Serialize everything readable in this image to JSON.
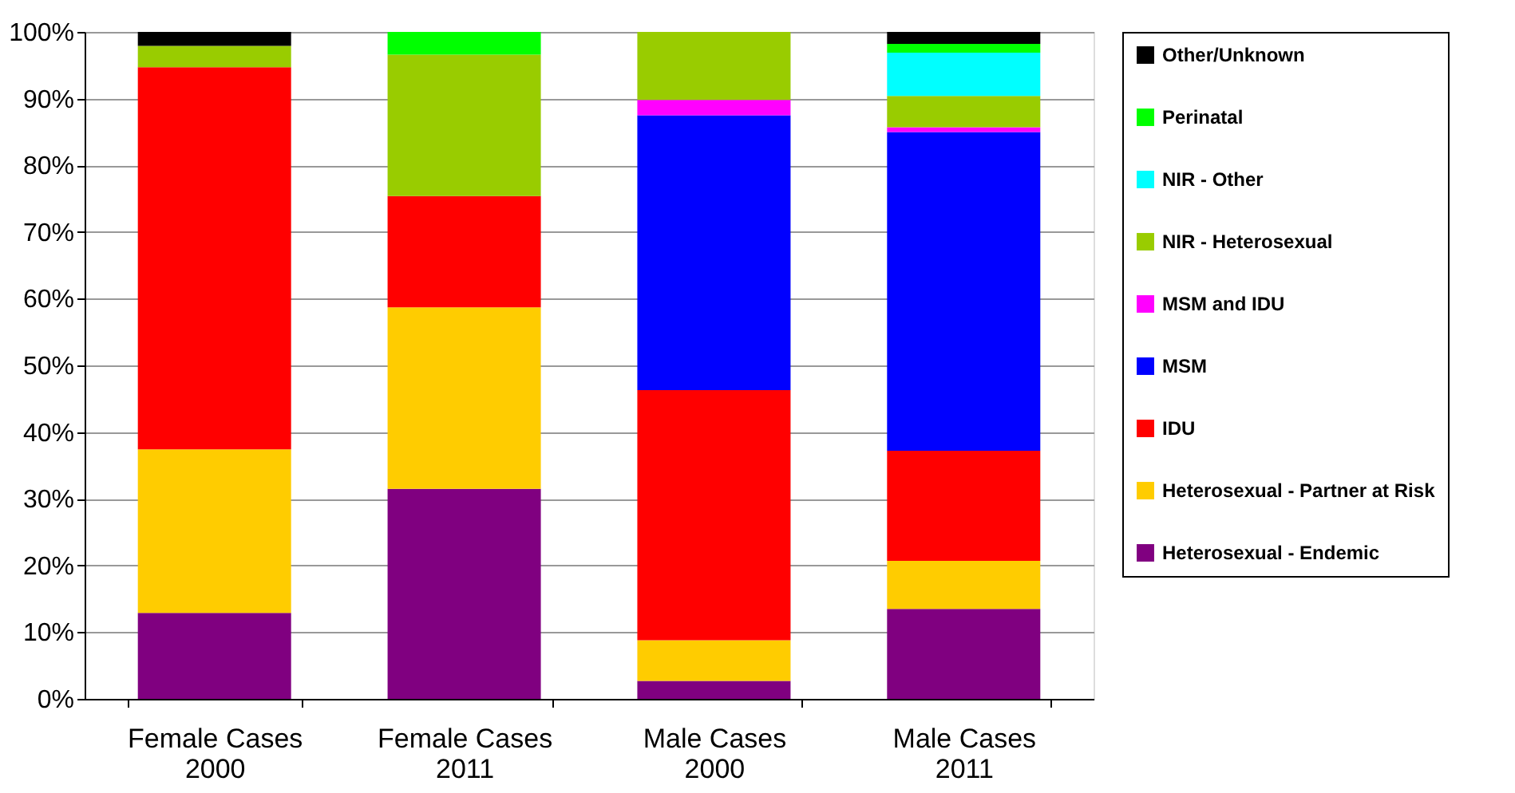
{
  "chart_data": {
    "type": "bar",
    "stacked": true,
    "grid": "y",
    "legend": "right",
    "categories": [
      "Female Cases 2000",
      "Female Cases 2011",
      "Male Cases 2000",
      "Male Cases 2011"
    ],
    "series": [
      {
        "name": "Heterosexual - Endemic",
        "color": "#800080",
        "values": [
          12.9,
          31.5,
          2.7,
          13.5
        ]
      },
      {
        "name": "Heterosexual - Partner at Risk",
        "color": "#ffcc00",
        "values": [
          24.5,
          27.2,
          6.1,
          7.2
        ]
      },
      {
        "name": "IDU",
        "color": "#ff0000",
        "values": [
          57.3,
          16.7,
          37.5,
          16.5
        ]
      },
      {
        "name": "MSM",
        "color": "#0000ff",
        "values": [
          0,
          0,
          41.2,
          47.8
        ]
      },
      {
        "name": "MSM and IDU",
        "color": "#ff00ff",
        "values": [
          0,
          0,
          2.3,
          0.7
        ]
      },
      {
        "name": "NIR - Heterosexual",
        "color": "#99cc00",
        "values": [
          3.2,
          21.2,
          10.2,
          4.7
        ]
      },
      {
        "name": "NIR - Other",
        "color": "#00ffff",
        "values": [
          0,
          0,
          0,
          6.5
        ]
      },
      {
        "name": "Perinatal",
        "color": "#00ff00",
        "values": [
          0,
          3.4,
          0,
          1.3
        ]
      },
      {
        "name": "Other/Unknown",
        "color": "#000000",
        "values": [
          2.1,
          0,
          0,
          1.8
        ]
      }
    ],
    "ylim": [
      0,
      100
    ],
    "yticks": [
      {
        "value": 0,
        "label": "0%"
      },
      {
        "value": 10,
        "label": "10%"
      },
      {
        "value": 20,
        "label": "20%"
      },
      {
        "value": 30,
        "label": "30%"
      },
      {
        "value": 40,
        "label": "40%"
      },
      {
        "value": 50,
        "label": "50%"
      },
      {
        "value": 60,
        "label": "60%"
      },
      {
        "value": 70,
        "label": "70%"
      },
      {
        "value": 80,
        "label": "80%"
      },
      {
        "value": 90,
        "label": "90%"
      },
      {
        "value": 100,
        "label": "100%"
      }
    ]
  }
}
